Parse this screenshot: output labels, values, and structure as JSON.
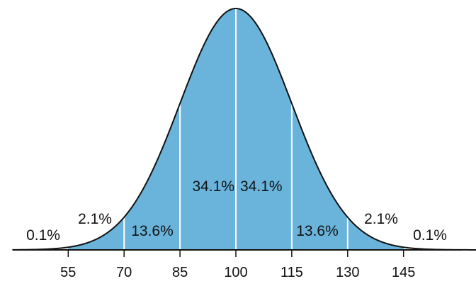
{
  "chart_data": {
    "type": "area",
    "title": "",
    "xlabel": "",
    "ylabel": "",
    "distribution": {
      "mean": 100,
      "sd": 15
    },
    "xlim": [
      40,
      165
    ],
    "x_ticks": [
      55,
      70,
      85,
      100,
      115,
      130,
      145
    ],
    "x_tick_labels": [
      "55",
      "70",
      "85",
      "100",
      "115",
      "130",
      "145"
    ],
    "dividers": [
      70,
      85,
      100,
      115,
      130
    ],
    "fill_range": [
      55,
      145
    ],
    "bands": [
      {
        "from": 40,
        "to": 55,
        "label": "0.1%"
      },
      {
        "from": 55,
        "to": 70,
        "label": "2.1%"
      },
      {
        "from": 70,
        "to": 85,
        "label": "13.6%"
      },
      {
        "from": 85,
        "to": 100,
        "label": "34.1%"
      },
      {
        "from": 100,
        "to": 115,
        "label": "34.1%"
      },
      {
        "from": 115,
        "to": 130,
        "label": "13.6%"
      },
      {
        "from": 130,
        "to": 145,
        "label": "2.1%"
      },
      {
        "from": 145,
        "to": 165,
        "label": "0.1%"
      }
    ],
    "colors": {
      "fill": "#6ab4dc",
      "curve": "#111111",
      "divider": "#ffffff",
      "axis": "#111111"
    }
  }
}
